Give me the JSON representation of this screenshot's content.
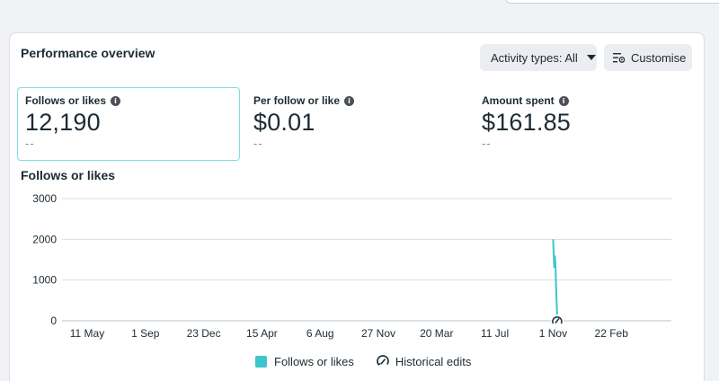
{
  "card": {
    "title": "Performance overview",
    "activity_button": "Activity types: All",
    "customise_button": "Customise"
  },
  "metrics": [
    {
      "label": "Follows or likes",
      "value": "12,190",
      "compare": "--"
    },
    {
      "label": "Per follow or like",
      "value": "$0.01",
      "compare": "--"
    },
    {
      "label": "Amount spent",
      "value": "$161.85",
      "compare": "--"
    }
  ],
  "chart_title": "Follows or likes",
  "legend": {
    "series_label": "Follows or likes",
    "edits_label": "Historical edits"
  },
  "colors": {
    "series": "#3ac6cc",
    "accent_border": "#7fdfe0"
  },
  "chart_data": {
    "type": "line",
    "title": "Follows or likes",
    "xlabel": "",
    "ylabel": "",
    "ylim": [
      0,
      3000
    ],
    "yticks": [
      0,
      1000,
      2000,
      3000
    ],
    "xticks": [
      "11 May",
      "1 Sep",
      "23 Dec",
      "15 Apr",
      "6 Aug",
      "27 Nov",
      "20 Mar",
      "11 Jul",
      "1 Nov",
      "22 Feb"
    ],
    "grid": true,
    "legend_position": "bottom",
    "series": [
      {
        "name": "Follows or likes",
        "x_index": [
          8.0,
          8.02,
          8.03,
          8.04,
          8.05,
          8.07
        ],
        "values": [
          2000,
          1300,
          1600,
          1400,
          900,
          100
        ]
      }
    ],
    "annotations": [
      {
        "type": "historical-edit",
        "x_index": 8.07,
        "y": 0
      }
    ]
  }
}
